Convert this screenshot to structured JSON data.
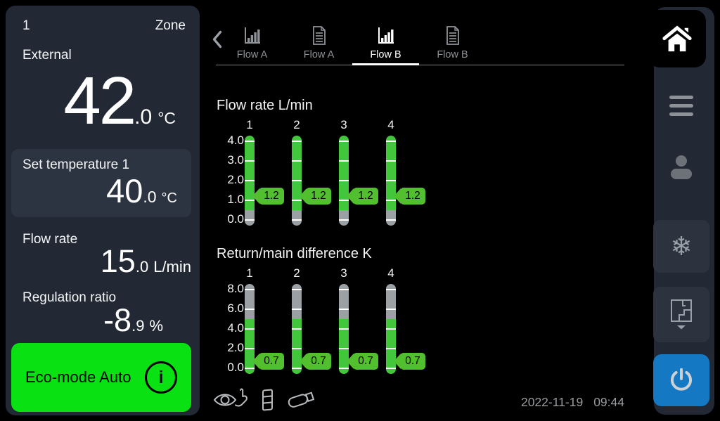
{
  "left_panel": {
    "zone_number": "1",
    "zone_label": "Zone",
    "external": {
      "label": "External",
      "value_int": "42",
      "value_frac": ".0",
      "unit": "°C"
    },
    "set_temperature": {
      "label": "Set temperature 1",
      "value_int": "40",
      "value_frac": ".0",
      "unit": "°C"
    },
    "flow_rate": {
      "label": "Flow rate",
      "value_int": "15",
      "value_frac": ".0",
      "unit": "L/min"
    },
    "regulation_ratio": {
      "label": "Regulation ratio",
      "value_int": "-8",
      "value_frac": ".9",
      "unit": "%"
    },
    "eco_mode": {
      "label": "Eco-mode Auto",
      "info_glyph": "i"
    }
  },
  "tab_bar": {
    "tabs": [
      {
        "label": "Flow A",
        "icon": "bar-chart",
        "active": false
      },
      {
        "label": "Flow A",
        "icon": "report",
        "active": false
      },
      {
        "label": "Flow B",
        "icon": "bar-chart",
        "active": true
      },
      {
        "label": "Flow B",
        "icon": "report",
        "active": false
      }
    ]
  },
  "chart_data": [
    {
      "type": "bar",
      "title": "Flow rate L/min",
      "categories": [
        "1",
        "2",
        "3",
        "4"
      ],
      "values": [
        1.2,
        1.2,
        1.2,
        1.2
      ],
      "value_labels": [
        "1.2",
        "1.2",
        "1.2",
        "1.2"
      ],
      "ylim": [
        0,
        4
      ],
      "yticks": [
        4.0,
        3.0,
        2.0,
        1.0,
        0.0
      ],
      "ytick_labels": [
        "4.0",
        "3.0",
        "2.0",
        "1.0",
        "0.0"
      ],
      "green_zone": {
        "side": "above",
        "boundary": 0.5
      },
      "legend": "none",
      "grid": "white ticks across gauge bars"
    },
    {
      "type": "bar",
      "title": "Return/main difference K",
      "categories": [
        "1",
        "2",
        "3",
        "4"
      ],
      "values": [
        0.7,
        0.7,
        0.7,
        0.7
      ],
      "value_labels": [
        "0.7",
        "0.7",
        "0.7",
        "0.7"
      ],
      "ylim": [
        0,
        8
      ],
      "yticks": [
        8.0,
        6.0,
        4.0,
        2.0,
        0.0
      ],
      "ytick_labels": [
        "8.0",
        "6.0",
        "4.0",
        "2.0",
        "0.0"
      ],
      "green_zone": {
        "side": "below",
        "boundary": 5.0
      },
      "legend": "none",
      "grid": "white ticks across gauge bars"
    }
  ],
  "status_bar": {
    "date": "2022-11-19",
    "time": "09:44",
    "icons": [
      "eye-hand",
      "module",
      "usb"
    ]
  },
  "sidebar": {
    "buttons": [
      "home",
      "menu",
      "user",
      "cooling",
      "zones",
      "power"
    ]
  },
  "colors": {
    "eco_green": "#09e113",
    "bar_green": "#41c63c",
    "badge_green": "#52bf2e",
    "bar_gray": "#9aa0a3",
    "power_blue": "#1578c2",
    "panel_bg": "#222935",
    "box_bg": "#2d3441"
  }
}
